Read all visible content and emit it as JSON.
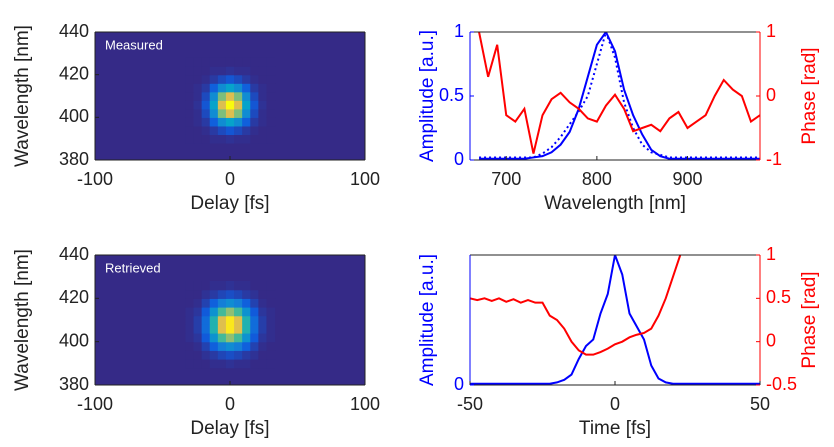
{
  "chart_data": [
    {
      "type": "heatmap",
      "annotation": "Measured",
      "xlabel": "Delay [fs]",
      "ylabel": "Wavelength [nm]",
      "xlim": [
        -100,
        100
      ],
      "xticks": [
        -100,
        0,
        100
      ],
      "ylim": [
        380,
        440
      ],
      "yticks": [
        380,
        400,
        420,
        440
      ],
      "zlim": [
        0,
        1
      ],
      "colormap": [
        "#352a87",
        "#0f5cdd",
        "#1481d6",
        "#06a4ca",
        "#2eb7a4",
        "#87bf77",
        "#d1bb59",
        "#fec832",
        "#f9fb0e"
      ],
      "x": [
        -30,
        -24,
        -18,
        -12,
        -6,
        0,
        6,
        12,
        18,
        24,
        30
      ],
      "y": [
        390,
        394,
        398,
        402,
        406,
        410,
        414,
        418,
        422,
        426
      ],
      "z": [
        [
          0,
          0,
          0,
          0.01,
          0.01,
          0.02,
          0.01,
          0.01,
          0,
          0,
          0
        ],
        [
          0,
          0,
          0.01,
          0.04,
          0.08,
          0.11,
          0.08,
          0.04,
          0.01,
          0,
          0
        ],
        [
          0,
          0.01,
          0.04,
          0.14,
          0.29,
          0.37,
          0.29,
          0.14,
          0.04,
          0.01,
          0
        ],
        [
          0,
          0.01,
          0.08,
          0.29,
          0.61,
          0.78,
          0.61,
          0.29,
          0.08,
          0.01,
          0
        ],
        [
          0,
          0.02,
          0.11,
          0.37,
          0.78,
          1,
          0.78,
          0.37,
          0.11,
          0.02,
          0
        ],
        [
          0,
          0.01,
          0.08,
          0.29,
          0.61,
          0.78,
          0.61,
          0.29,
          0.08,
          0.01,
          0
        ],
        [
          0,
          0.01,
          0.04,
          0.14,
          0.29,
          0.37,
          0.29,
          0.14,
          0.04,
          0.01,
          0
        ],
        [
          0,
          0,
          0.01,
          0.04,
          0.08,
          0.11,
          0.08,
          0.04,
          0.01,
          0,
          0
        ],
        [
          0,
          0,
          0,
          0.01,
          0.01,
          0.02,
          0.01,
          0.01,
          0,
          0,
          0
        ],
        [
          0,
          0,
          0,
          0,
          0,
          0,
          0,
          0,
          0,
          0,
          0
        ]
      ]
    },
    {
      "type": "line",
      "xlabel": "Wavelength [nm]",
      "ylabel": "Amplitude [a.u.]",
      "y2label": "Phase [rad]",
      "ycolor": "#0000ff",
      "y2color": "#ff0000",
      "xlim": [
        660,
        980
      ],
      "xticks": [
        700,
        800,
        900
      ],
      "ylim": [
        0,
        1
      ],
      "yticks": [
        0,
        0.5,
        1
      ],
      "y2lim": [
        -1,
        1
      ],
      "y2ticks": [
        -1,
        0,
        1
      ],
      "x": [
        670,
        680,
        690,
        700,
        710,
        720,
        730,
        740,
        750,
        760,
        770,
        780,
        790,
        800,
        810,
        820,
        830,
        840,
        850,
        860,
        870,
        880,
        890,
        900,
        910,
        920,
        930,
        940,
        950,
        960,
        970,
        980
      ],
      "series": [
        {
          "color": "#0000ff",
          "style": "dotted",
          "values": [
            0.02,
            0.02,
            0.02,
            0.02,
            0.02,
            0.02,
            0.02,
            0.05,
            0.1,
            0.18,
            0.28,
            0.38,
            0.5,
            0.75,
            1,
            0.8,
            0.45,
            0.25,
            0.12,
            0.06,
            0.04,
            0.02,
            0.02,
            0.02,
            0.02,
            0.02,
            0.02,
            0.02,
            0.02,
            0.02,
            0.02,
            0.02
          ]
        },
        {
          "color": "#0000ff",
          "style": "solid",
          "values": [
            0.01,
            0.01,
            0.01,
            0.01,
            0.01,
            0.01,
            0.02,
            0.03,
            0.06,
            0.12,
            0.22,
            0.4,
            0.65,
            0.9,
            1,
            0.85,
            0.55,
            0.35,
            0.2,
            0.08,
            0.03,
            0.01,
            0.01,
            0.01,
            0.01,
            0.01,
            0.01,
            0.01,
            0.01,
            0.01,
            0.01,
            0.01
          ]
        },
        {
          "color": "#ff0000",
          "style": "solid",
          "axis": "y2",
          "values": [
            1,
            0.3,
            0.8,
            -0.3,
            -0.4,
            -0.2,
            -0.9,
            -0.3,
            -0.05,
            0.05,
            -0.1,
            -0.2,
            -0.35,
            -0.4,
            -0.15,
            0.02,
            -0.2,
            -0.55,
            -0.5,
            -0.45,
            -0.55,
            -0.35,
            -0.25,
            -0.5,
            -0.4,
            -0.3,
            0,
            0.25,
            0.1,
            0,
            -0.4,
            -0.3
          ]
        }
      ]
    },
    {
      "type": "heatmap",
      "annotation": "Retrieved",
      "xlabel": "Delay [fs]",
      "ylabel": "Wavelength [nm]",
      "xlim": [
        -100,
        100
      ],
      "xticks": [
        -100,
        0,
        100
      ],
      "ylim": [
        380,
        440
      ],
      "yticks": [
        380,
        400,
        420,
        440
      ],
      "zlim": [
        0,
        1
      ],
      "colormap": [
        "#352a87",
        "#0f5cdd",
        "#1481d6",
        "#06a4ca",
        "#2eb7a4",
        "#87bf77",
        "#d1bb59",
        "#fec832",
        "#f9fb0e"
      ],
      "x": [
        -30,
        -24,
        -18,
        -12,
        -6,
        0,
        6,
        12,
        18,
        24,
        30
      ],
      "y": [
        390,
        394,
        398,
        402,
        406,
        410,
        414,
        418,
        422,
        426
      ],
      "z": [
        [
          0,
          0,
          0,
          0.01,
          0.01,
          0.02,
          0.01,
          0.01,
          0,
          0,
          0
        ],
        [
          0,
          0,
          0.02,
          0.04,
          0.07,
          0.09,
          0.07,
          0.04,
          0.02,
          0,
          0
        ],
        [
          0,
          0.01,
          0.06,
          0.14,
          0.24,
          0.29,
          0.24,
          0.14,
          0.06,
          0.01,
          0
        ],
        [
          0.01,
          0.03,
          0.12,
          0.31,
          0.53,
          0.64,
          0.53,
          0.31,
          0.12,
          0.03,
          0.01
        ],
        [
          0.01,
          0.05,
          0.18,
          0.46,
          0.79,
          0.95,
          0.79,
          0.46,
          0.18,
          0.05,
          0.01
        ],
        [
          0.01,
          0.05,
          0.18,
          0.46,
          0.79,
          0.95,
          0.79,
          0.46,
          0.18,
          0.05,
          0.01
        ],
        [
          0.01,
          0.03,
          0.12,
          0.31,
          0.53,
          0.64,
          0.53,
          0.31,
          0.12,
          0.03,
          0.01
        ],
        [
          0,
          0.01,
          0.06,
          0.14,
          0.24,
          0.29,
          0.24,
          0.14,
          0.06,
          0.01,
          0
        ],
        [
          0,
          0,
          0.02,
          0.04,
          0.07,
          0.09,
          0.07,
          0.04,
          0.02,
          0,
          0
        ],
        [
          0,
          0,
          0,
          0.01,
          0.01,
          0.02,
          0.01,
          0.01,
          0,
          0,
          0
        ]
      ]
    },
    {
      "type": "line",
      "xlabel": "Time [fs]",
      "ylabel": "Amplitude [a.u.]",
      "y2label": "Phase [rad]",
      "ycolor": "#0000ff",
      "y2color": "#ff0000",
      "xlim": [
        -50,
        50
      ],
      "xticks": [
        -50,
        0,
        50
      ],
      "ylim": [
        0,
        1
      ],
      "yticks": [
        0
      ],
      "y2lim": [
        -0.5,
        1
      ],
      "y2ticks": [
        -0.5,
        0,
        0.5,
        1
      ],
      "x": [
        -50,
        -47.5,
        -45,
        -42.5,
        -40,
        -37.5,
        -35,
        -32.5,
        -30,
        -27.5,
        -25,
        -22.5,
        -20,
        -17.5,
        -15,
        -12.5,
        -10,
        -7.5,
        -5,
        -2.5,
        0,
        2.5,
        5,
        7.5,
        10,
        12.5,
        15,
        17.5,
        20,
        22.5,
        25,
        27.5,
        30,
        32.5,
        35,
        37.5,
        40,
        42.5,
        45,
        47.5,
        50
      ],
      "series": [
        {
          "color": "#0000ff",
          "style": "solid",
          "values": [
            0.01,
            0.01,
            0.01,
            0.01,
            0.01,
            0.01,
            0.01,
            0.01,
            0.01,
            0.01,
            0.01,
            0.01,
            0.02,
            0.04,
            0.08,
            0.2,
            0.3,
            0.35,
            0.55,
            0.7,
            1,
            0.85,
            0.55,
            0.45,
            0.35,
            0.15,
            0.05,
            0.02,
            0.01,
            0.01,
            0.01,
            0.01,
            0.01,
            0.01,
            0.01,
            0.01,
            0.01,
            0.01,
            0.01,
            0.01,
            0.01
          ]
        },
        {
          "color": "#ff0000",
          "style": "solid",
          "axis": "y2",
          "values": [
            0.5,
            0.48,
            0.5,
            0.47,
            0.5,
            0.46,
            0.49,
            0.45,
            0.48,
            0.45,
            0.45,
            0.3,
            0.25,
            0.15,
            0,
            -0.1,
            -0.15,
            -0.15,
            -0.12,
            -0.08,
            -0.03,
            0,
            0.05,
            0.08,
            0.1,
            0.15,
            0.3,
            0.5,
            0.75,
            1,
            null,
            null,
            null,
            null,
            null,
            null,
            null,
            null,
            null,
            null,
            null
          ]
        }
      ]
    }
  ]
}
